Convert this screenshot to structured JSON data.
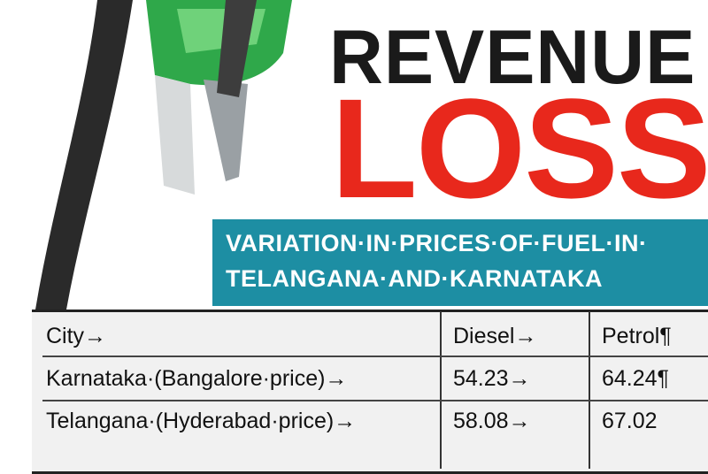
{
  "header": {
    "title": "REVENUE",
    "subtitle": "LOSS",
    "banner": [
      "VARIATION·IN·PRICES·OF·FUEL·IN·",
      "TELANGANA·AND·KARNATAKA"
    ]
  },
  "table": {
    "columns": [
      "City→",
      "Diesel→",
      "Petrol¶"
    ],
    "rows": [
      [
        "Karnataka·(Bangalore·price)→",
        "54.23→",
        "64.24¶"
      ],
      [
        "Telangana·(Hyderabad·price)→",
        "58.08→",
        "67.02"
      ]
    ]
  }
}
